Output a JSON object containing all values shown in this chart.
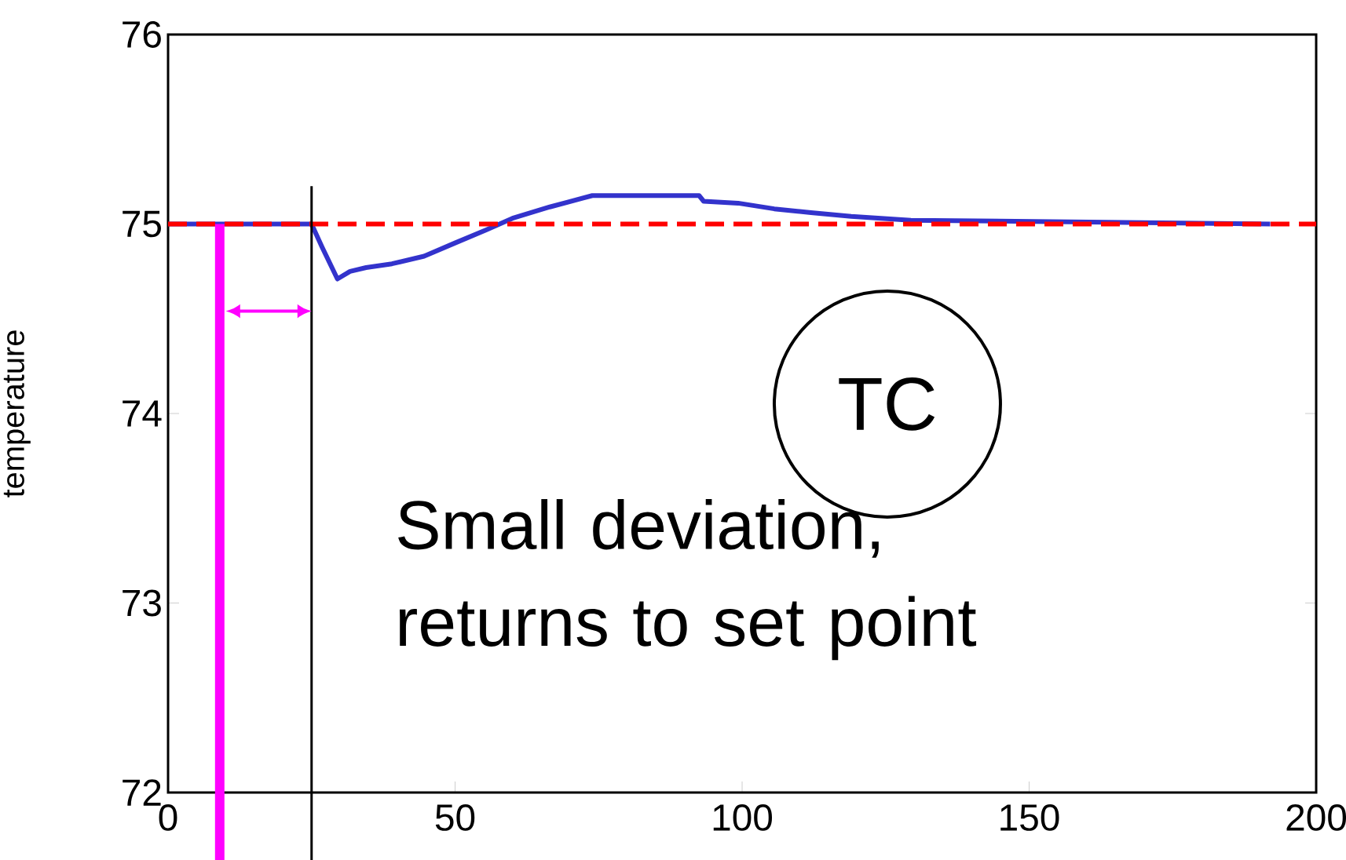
{
  "chart_data": {
    "type": "line",
    "ylabel": "temperature",
    "x": [
      0,
      25,
      26.8,
      29.5,
      31.7,
      34.5,
      39,
      44.6,
      50,
      55.5,
      60,
      66.5,
      73.9,
      92.5,
      93.3,
      99.3,
      105.6,
      112,
      119,
      129.4,
      192
    ],
    "series": [
      {
        "color": "#3333cc",
        "values": [
          75,
          75,
          74.88,
          74.71,
          74.75,
          74.77,
          74.79,
          74.83,
          74.9,
          74.97,
          75.03,
          75.09,
          75.15,
          75.15,
          75.12,
          75.11,
          75.08,
          75.06,
          75.04,
          75.02,
          75
        ]
      }
    ],
    "xlim": [
      0,
      200
    ],
    "ylim": [
      72,
      76
    ],
    "xticks": [
      0,
      50,
      100,
      150,
      200
    ],
    "yticks": [
      72,
      73,
      74,
      75,
      76
    ],
    "ref_lines": [
      {
        "axis": "y",
        "value": 75,
        "color": "#ff0000",
        "line_style": "dashed"
      },
      {
        "axis": "x",
        "value": 9,
        "color": "#ff00ff"
      },
      {
        "axis": "x",
        "value": 25,
        "color": "#000000"
      }
    ],
    "annotations": [
      "Small deviation, returns to set point",
      "TC"
    ],
    "marker": "none",
    "line_style": "solid",
    "grid": false
  }
}
